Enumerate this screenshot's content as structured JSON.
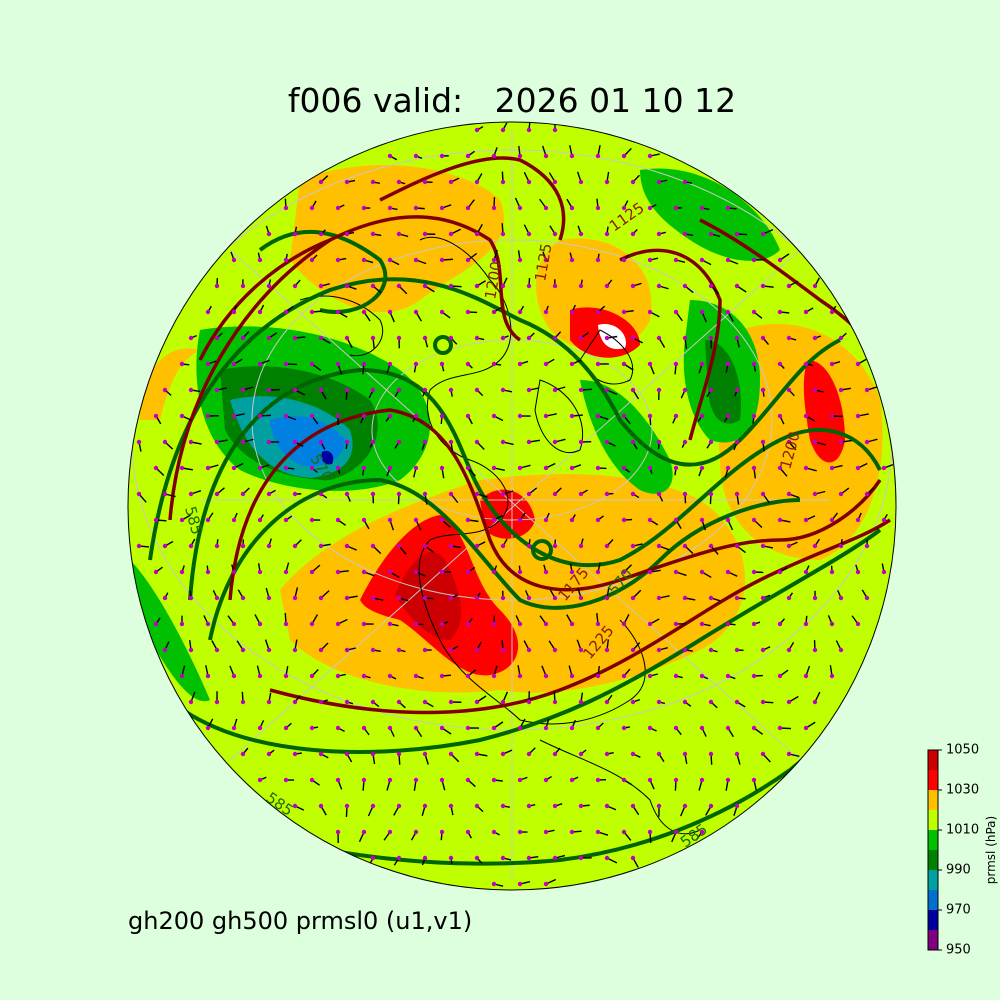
{
  "title": "f006 valid:   2026 01 10 12",
  "caption": "gh200 gh500 prmsl0 (u1,v1)",
  "contour_labels": [
    "585",
    "570",
    "1125",
    "1125",
    "1200",
    "1200",
    "1175",
    "570",
    "1225",
    "585",
    "585"
  ],
  "colorbar": {
    "label": "prmsl (hPa)",
    "lim": [
      950,
      1050
    ],
    "ticks": [
      950,
      970,
      990,
      1010,
      1030,
      1050
    ],
    "colors": [
      "#800080",
      "#0000a0",
      "#0070d0",
      "#00a0a0",
      "#008000",
      "#00c000",
      "#bfff00",
      "#ffc000",
      "#ff0000",
      "#cc0000"
    ]
  }
}
